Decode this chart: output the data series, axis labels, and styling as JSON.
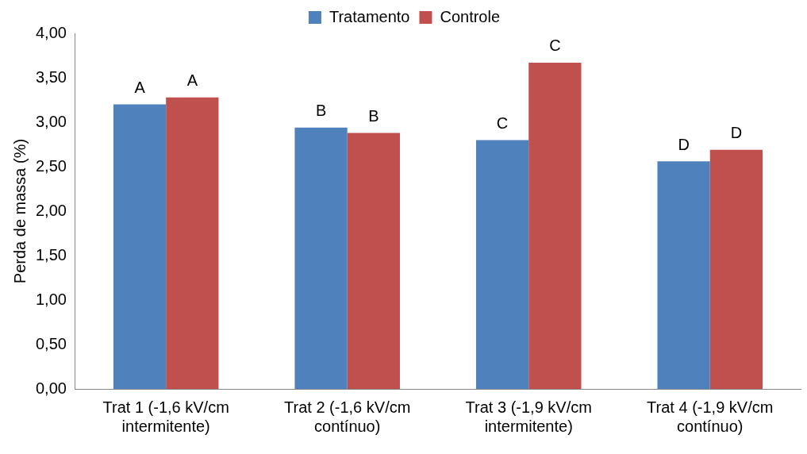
{
  "chart_data": {
    "type": "bar",
    "ylabel": "Perda de massa (%)",
    "categories": [
      "Trat 1 (-1,6 kV/cm intermitente)",
      "Trat 2 (-1,6 kV/cm contínuo)",
      "Trat 3 (-1,9 kV/cm intermitente)",
      "Trat 4 (-1,9 kV/cm contínuo)"
    ],
    "series": [
      {
        "name": "Tratamento",
        "color": "#4f81bd",
        "values": [
          3.2,
          2.94,
          2.8,
          2.56
        ],
        "value_labels": [
          "A",
          "B",
          "C",
          "D"
        ]
      },
      {
        "name": "Controle",
        "color": "#c0504d",
        "values": [
          3.28,
          2.88,
          3.67,
          2.69
        ],
        "value_labels": [
          "A",
          "B",
          "C",
          "D"
        ]
      }
    ],
    "ylim": [
      0,
      4
    ],
    "yticks": [
      {
        "value": 0,
        "label": "0,00"
      },
      {
        "value": 0.5,
        "label": "0,50"
      },
      {
        "value": 1,
        "label": "1,00"
      },
      {
        "value": 1.5,
        "label": "1,50"
      },
      {
        "value": 2,
        "label": "2,00"
      },
      {
        "value": 2.5,
        "label": "2,50"
      },
      {
        "value": 3,
        "label": "3,00"
      },
      {
        "value": 3.5,
        "label": "3,50"
      },
      {
        "value": 4,
        "label": "4,00"
      }
    ],
    "grid": false,
    "legend": "top"
  }
}
